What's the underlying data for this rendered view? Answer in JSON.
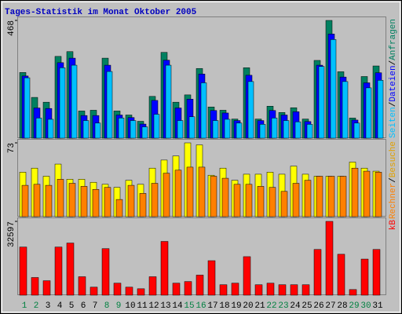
{
  "chart_data": [
    {
      "type": "bar",
      "title": "Tages-Statistik im Monat Oktober 2005",
      "categories": [
        "1",
        "2",
        "3",
        "4",
        "5",
        "6",
        "7",
        "8",
        "9",
        "10",
        "11",
        "12",
        "13",
        "14",
        "15",
        "16",
        "17",
        "18",
        "19",
        "20",
        "21",
        "22",
        "23",
        "24",
        "25",
        "26",
        "27",
        "28",
        "29",
        "30",
        "31"
      ],
      "category_colors": [
        "#008040",
        "#008040",
        "#000000",
        "#000000",
        "#000000",
        "#000000",
        "#000000",
        "#008040",
        "#008040",
        "#000000",
        "#000000",
        "#000000",
        "#000000",
        "#000000",
        "#008040",
        "#008040",
        "#000000",
        "#000000",
        "#000000",
        "#000000",
        "#000000",
        "#008040",
        "#008040",
        "#000000",
        "#000000",
        "#000000",
        "#000000",
        "#000000",
        "#008040",
        "#008040",
        "#000000"
      ],
      "legend_separator": "/",
      "ylim": [
        0,
        468
      ],
      "yticks": [
        468
      ],
      "series": [
        {
          "name": "Anfragen",
          "color": "#008060",
          "values": [
            261,
            162,
            143,
            325,
            344,
            108,
            111,
            318,
            108,
            92,
            67,
            166,
            341,
            143,
            172,
            277,
            124,
            111,
            76,
            280,
            76,
            127,
            102,
            121,
            76,
            309,
            468,
            264,
            80,
            245,
            287
          ]
        },
        {
          "name": "Dateien",
          "color": "#0000ff",
          "values": [
            247,
            120,
            118,
            300,
            318,
            90,
            90,
            290,
            92,
            82,
            56,
            150,
            310,
            120,
            155,
            255,
            110,
            100,
            70,
            250,
            70,
            110,
            92,
            105,
            66,
            290,
            414,
            243,
            72,
            220,
            260
          ]
        },
        {
          "name": "Seiten",
          "color": "#00c0ff",
          "values": [
            240,
            80,
            75,
            280,
            290,
            70,
            60,
            265,
            80,
            70,
            45,
            95,
            290,
            70,
            85,
            220,
            70,
            75,
            60,
            225,
            55,
            80,
            70,
            65,
            55,
            285,
            392,
            225,
            60,
            200,
            230
          ]
        }
      ]
    },
    {
      "type": "bar",
      "ylim": [
        0,
        73
      ],
      "yticks": [
        73
      ],
      "series": [
        {
          "name": "Besuche",
          "color": "#ffff00",
          "values": [
            44,
            48,
            40,
            52,
            37,
            37,
            34,
            32,
            29,
            36,
            32,
            48,
            56,
            60,
            73,
            71,
            41,
            48,
            36,
            42,
            42,
            44,
            42,
            50,
            42,
            40,
            40,
            40,
            54,
            48,
            45
          ]
        },
        {
          "name": "Rechner",
          "color": "#ff8000",
          "values": [
            31,
            32,
            31,
            37,
            33,
            30,
            27,
            29,
            17,
            31,
            23,
            33,
            43,
            46,
            49,
            49,
            40,
            38,
            32,
            32,
            30,
            29,
            25,
            33,
            36,
            40,
            40,
            40,
            48,
            45,
            44
          ]
        }
      ]
    },
    {
      "type": "bar",
      "ylim": [
        0,
        32597
      ],
      "yticks": [
        32597
      ],
      "series": [
        {
          "name": "kB",
          "color": "#ff0000",
          "values": [
            21260,
            7800,
            6380,
            21260,
            23030,
            8150,
            3540,
            20550,
            5310,
            3540,
            2830,
            8150,
            23740,
            5310,
            6020,
            8860,
            15240,
            4610,
            5310,
            17010,
            4610,
            5310,
            4610,
            4610,
            4610,
            20200,
            32597,
            18070,
            2480,
            15940,
            20200
          ]
        }
      ]
    }
  ]
}
